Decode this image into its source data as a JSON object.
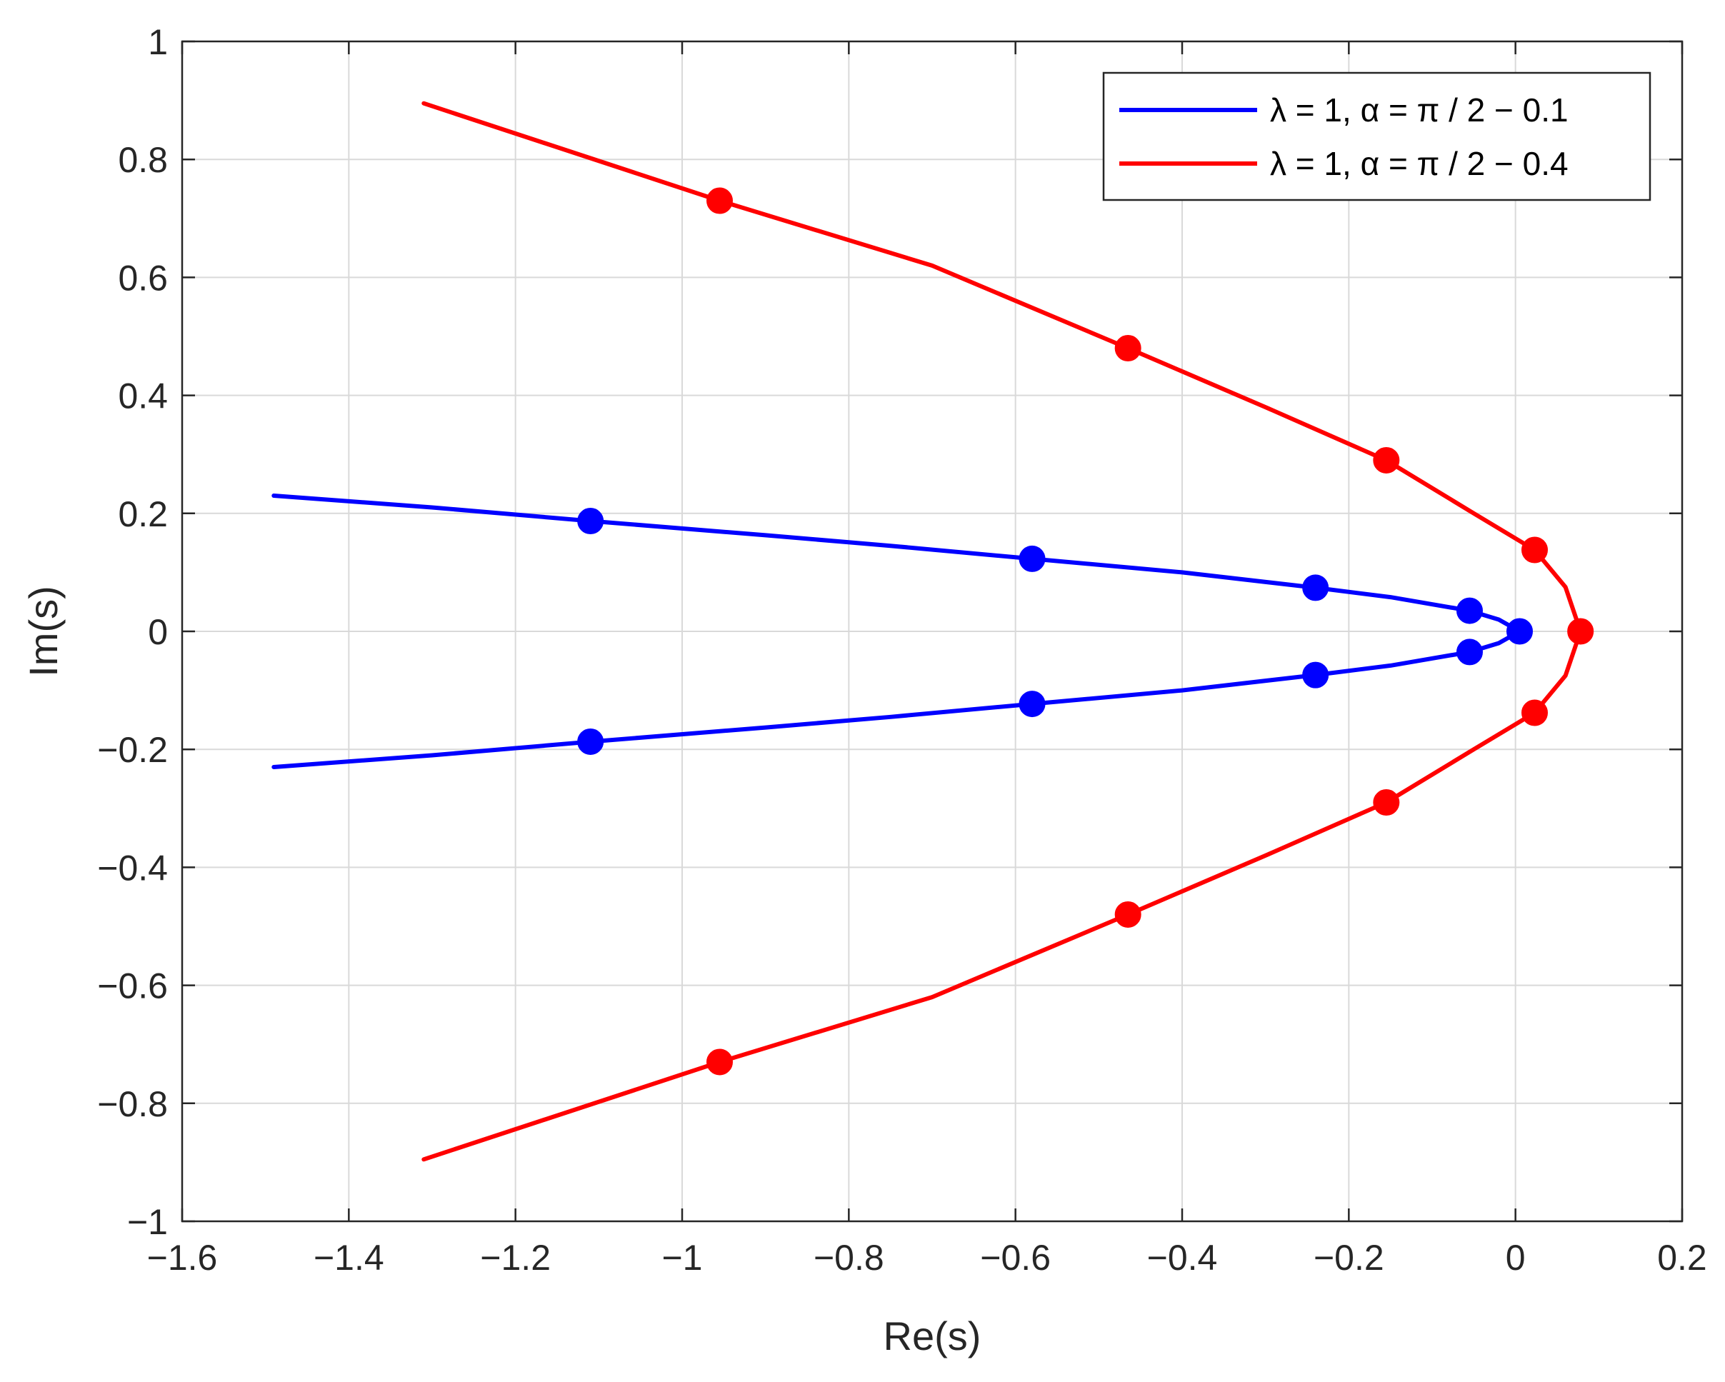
{
  "chart_data": {
    "type": "line",
    "xlabel": "Re(s)",
    "ylabel": "Im(s)",
    "xlim": [
      -1.6,
      0.2
    ],
    "ylim": [
      -1,
      1
    ],
    "xticks": [
      -1.6,
      -1.4,
      -1.2,
      -1,
      -0.8,
      -0.6,
      -0.4,
      -0.2,
      0,
      0.2
    ],
    "xtick_labels": [
      "−1.6",
      "−1.4",
      "−1.2",
      "−1",
      "−0.8",
      "−0.6",
      "−0.4",
      "−0.2",
      "0",
      "0.2"
    ],
    "yticks": [
      -1,
      -0.8,
      -0.6,
      -0.4,
      -0.2,
      0,
      0.2,
      0.4,
      0.6,
      0.8,
      1
    ],
    "ytick_labels": [
      "−1",
      "−0.8",
      "−0.6",
      "−0.4",
      "−0.2",
      "0",
      "0.2",
      "0.4",
      "0.6",
      "0.8",
      "1"
    ],
    "grid": true,
    "legend_position": "top-right",
    "series": [
      {
        "name": "λ = 1, α = π / 2 − 0.1",
        "color": "#0000ff",
        "curve": [
          [
            -1.49,
            0.23
          ],
          [
            -1.3,
            0.21
          ],
          [
            -1.11,
            0.187
          ],
          [
            -0.9,
            0.163
          ],
          [
            -0.75,
            0.145
          ],
          [
            -0.58,
            0.123
          ],
          [
            -0.4,
            0.1
          ],
          [
            -0.24,
            0.074
          ],
          [
            -0.15,
            0.058
          ],
          [
            -0.055,
            0.035
          ],
          [
            -0.02,
            0.02
          ],
          [
            0.005,
            0.0
          ],
          [
            -0.02,
            -0.02
          ],
          [
            -0.055,
            -0.035
          ],
          [
            -0.15,
            -0.058
          ],
          [
            -0.24,
            -0.074
          ],
          [
            -0.4,
            -0.1
          ],
          [
            -0.58,
            -0.123
          ],
          [
            -0.75,
            -0.145
          ],
          [
            -0.9,
            -0.163
          ],
          [
            -1.11,
            -0.187
          ],
          [
            -1.3,
            -0.21
          ],
          [
            -1.49,
            -0.23
          ]
        ],
        "markers": [
          [
            -1.11,
            0.187
          ],
          [
            -0.58,
            0.123
          ],
          [
            -0.24,
            0.074
          ],
          [
            -0.055,
            0.035
          ],
          [
            0.005,
            0.0
          ],
          [
            -0.055,
            -0.035
          ],
          [
            -0.24,
            -0.074
          ],
          [
            -0.58,
            -0.123
          ],
          [
            -1.11,
            -0.187
          ]
        ]
      },
      {
        "name": "λ = 1, α = π / 2 − 0.4",
        "color": "#ff0000",
        "curve": [
          [
            -1.31,
            0.895
          ],
          [
            -0.955,
            0.73
          ],
          [
            -0.7,
            0.62
          ],
          [
            -0.465,
            0.48
          ],
          [
            -0.3,
            0.38
          ],
          [
            -0.155,
            0.29
          ],
          [
            -0.05,
            0.2
          ],
          [
            0.023,
            0.138
          ],
          [
            0.06,
            0.075
          ],
          [
            0.078,
            0.0
          ],
          [
            0.06,
            -0.075
          ],
          [
            0.023,
            -0.138
          ],
          [
            -0.05,
            -0.2
          ],
          [
            -0.155,
            -0.29
          ],
          [
            -0.3,
            -0.38
          ],
          [
            -0.465,
            -0.48
          ],
          [
            -0.7,
            -0.62
          ],
          [
            -0.955,
            -0.73
          ],
          [
            -1.31,
            -0.895
          ]
        ],
        "markers": [
          [
            -0.955,
            0.73
          ],
          [
            -0.465,
            0.48
          ],
          [
            -0.155,
            0.29
          ],
          [
            0.023,
            0.138
          ],
          [
            0.078,
            0.0
          ],
          [
            0.023,
            -0.138
          ],
          [
            -0.155,
            -0.29
          ],
          [
            -0.465,
            -0.48
          ],
          [
            -0.955,
            -0.73
          ]
        ]
      }
    ]
  }
}
